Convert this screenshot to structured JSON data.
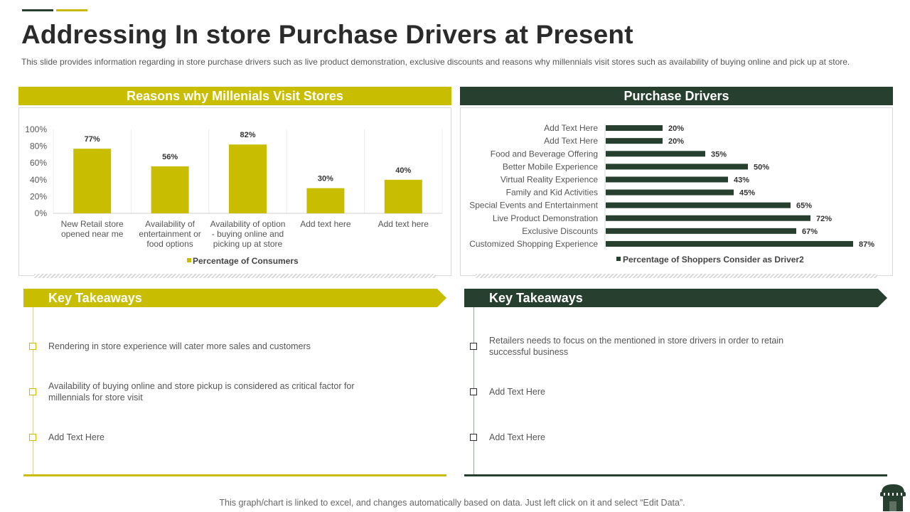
{
  "title": "Addressing In store Purchase Drivers at Present",
  "description": "This slide provides information regarding in store purchase drivers such as live product demonstration, exclusive discounts and reasons why millennials visit stores such as availability of buying online and pick up at store.",
  "left_panel": {
    "header": "Reasons why Millenials Visit Stores"
  },
  "right_panel": {
    "header": "Purchase Drivers"
  },
  "chart_data": [
    {
      "type": "bar",
      "title": "Reasons why Millenials Visit Stores",
      "categories": [
        [
          "New Retail store",
          "opened near me"
        ],
        [
          "Availability of",
          "entertainment or",
          "food  options"
        ],
        [
          "Availability of option",
          "- buying online and",
          "picking up at store"
        ],
        [
          "Add text here"
        ],
        [
          "Add text here"
        ]
      ],
      "series": [
        {
          "name": "Percentage of Consumers",
          "values": [
            77,
            56,
            82,
            30,
            40
          ]
        }
      ],
      "value_labels": [
        "77%",
        "56%",
        "82%",
        "30%",
        "40%"
      ],
      "y_ticks": [
        "100%",
        "80%",
        "60%",
        "40%",
        "20%",
        "0%"
      ],
      "ylim": [
        0,
        100
      ],
      "legend": "bottom",
      "color": "#c9bd00"
    },
    {
      "type": "bar",
      "orientation": "horizontal",
      "title": "Purchase Drivers",
      "categories": [
        "Add Text Here",
        "Add Text Here",
        "Food and Beverage Offering",
        "Better Mobile Experience",
        "Virtual Reality Experience",
        "Family and Kid Activities",
        "Special Events and Entertainment",
        "Live Product Demonstration",
        "Exclusive Discounts",
        "Customized Shopping Experience"
      ],
      "series": [
        {
          "name": "Percentage of Shoppers Consider as Driver2",
          "values": [
            20,
            20,
            35,
            50,
            43,
            45,
            65,
            72,
            67,
            87
          ]
        }
      ],
      "value_labels": [
        "20%",
        "20%",
        "35%",
        "50%",
        "43%",
        "45%",
        "65%",
        "72%",
        "67%",
        "87%"
      ],
      "xlim": [
        0,
        100
      ],
      "legend": "bottom",
      "color": "#263f2e"
    }
  ],
  "takeaways_left": {
    "title": "Key Takeaways",
    "items": [
      [
        "Rendering  in store experience will cater more sales and customers"
      ],
      [
        "Availability of buying online and store pickup is considered as critical factor for",
        "millennials for store visit"
      ],
      [
        "Add Text Here"
      ]
    ]
  },
  "takeaways_right": {
    "title": "Key Takeaways",
    "items": [
      [
        "Retailers needs to focus on the mentioned in store drivers in order to retain",
        "successful business"
      ],
      [
        "Add Text Here"
      ],
      [
        "Add Text Here"
      ]
    ]
  },
  "footnote": "This graph/chart is linked to excel, and changes automatically based on data. Just left click on it and select “Edit Data”.",
  "icons": {
    "store": "store-icon"
  },
  "colors": {
    "gold": "#c9bd00",
    "dark_green": "#263f2e"
  }
}
